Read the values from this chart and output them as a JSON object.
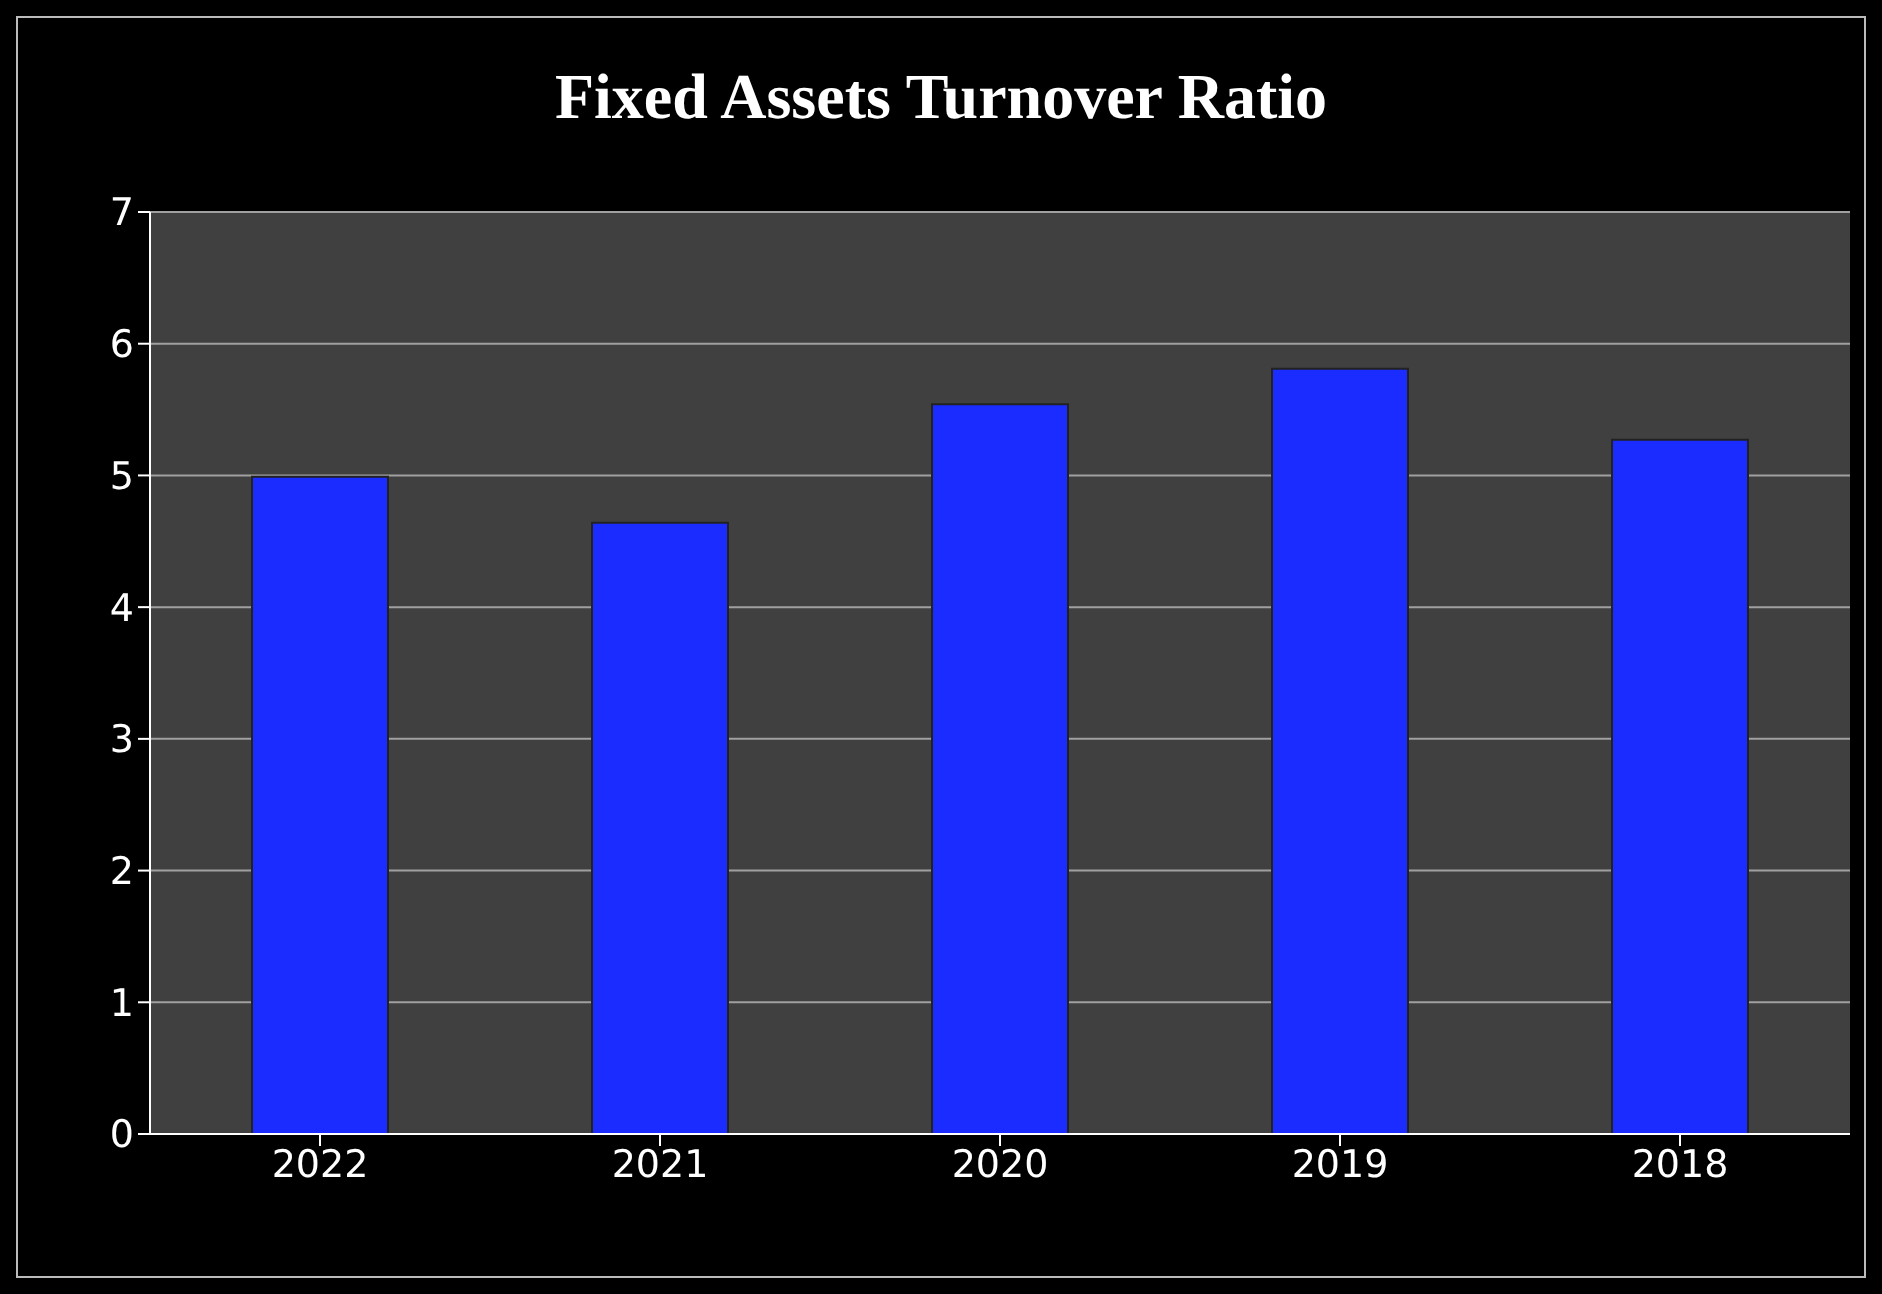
{
  "chart_data": {
    "type": "bar",
    "title": "Fixed Assets Turnover Ratio",
    "categories": [
      "2022",
      "2021",
      "2020",
      "2019",
      "2018"
    ],
    "values": [
      4.99,
      4.64,
      5.54,
      5.81,
      5.27
    ],
    "color": "#1a2cff",
    "ylim": [
      0,
      7
    ],
    "yticks": [
      0,
      1,
      2,
      3,
      4,
      5,
      6,
      7
    ],
    "grid": "y"
  }
}
